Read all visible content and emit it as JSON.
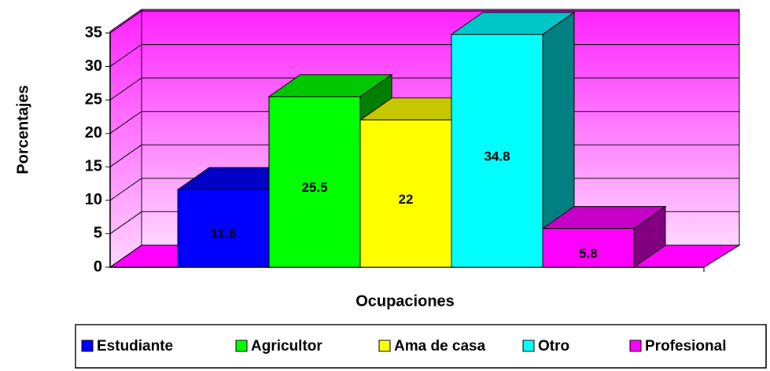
{
  "chart_data": {
    "type": "bar3d",
    "y_label": "Porcentajes",
    "x_label": "Ocupaciones",
    "series": [
      {
        "name": "Estudiante",
        "color": "#0000ff",
        "values": [
          11.6
        ]
      },
      {
        "name": "Agricultor",
        "color": "#00ff00",
        "values": [
          25.5
        ]
      },
      {
        "name": "Ama de casa",
        "color": "#ffff00",
        "values": [
          22
        ]
      },
      {
        "name": "Otro",
        "color": "#00ffff",
        "values": [
          34.8
        ]
      },
      {
        "name": "Profesional",
        "color": "#ff00ff",
        "values": [
          5.8
        ]
      }
    ],
    "ylim": [
      0,
      35
    ],
    "yticks": [
      0,
      5,
      10,
      15,
      20,
      25,
      30,
      35
    ],
    "grid": true,
    "wall_color": "#ff00ff",
    "legend": "bottom"
  }
}
